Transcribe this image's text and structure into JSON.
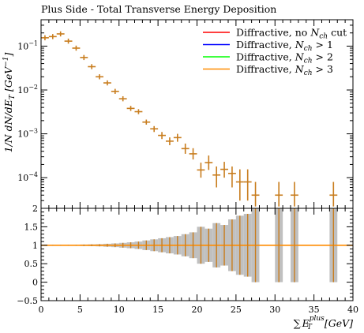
{
  "chart_data": {
    "type": "scatter",
    "title": "Plus Side - Total Transverse Energy Deposition",
    "xlabel": "∑ E_T^plus [GeV]",
    "xlabel_parts": {
      "sum": "∑",
      "e": "E",
      "sub": "T",
      "sup": "plus",
      "unit": "[GeV]"
    },
    "ylabel": "1/N dN/dE_T [GeV^-1]",
    "ylabel_parts": {
      "main": "1/N dN/dE",
      "sub": "T",
      "unit": "[GeV",
      "sup": "−1",
      "close": "]"
    },
    "ratio_ylabel": "",
    "xlim": [
      0,
      40
    ],
    "ylim": [
      2e-05,
      0.4
    ],
    "ylog": true,
    "ratio_ylim": [
      -0.5,
      2
    ],
    "x_ticks": [
      0,
      5,
      10,
      15,
      20,
      25,
      30,
      35,
      40
    ],
    "x_tick_labels": [
      "0",
      "5",
      "10",
      "15",
      "20",
      "25",
      "30",
      "35",
      "40"
    ],
    "y_ticks": [
      0.0001,
      0.001,
      0.01,
      0.1
    ],
    "y_tick_labels": [
      {
        "base": "10",
        "exp": "−4"
      },
      {
        "base": "10",
        "exp": "−3"
      },
      {
        "base": "10",
        "exp": "−2"
      },
      {
        "base": "10",
        "exp": "−1"
      }
    ],
    "ratio_ticks": [
      -0.5,
      0,
      0.5,
      1,
      1.5,
      2
    ],
    "ratio_tick_labels": [
      "−0.5",
      "0",
      "0.5",
      "1",
      "1.5",
      "2"
    ],
    "legend_position": "top-right",
    "legend": [
      {
        "pre": "Diffractive, no ",
        "sym": "N",
        "sub": "ch",
        "post": " cut",
        "color": "#ff0000"
      },
      {
        "pre": "Diffractive, ",
        "sym": "N",
        "sub": "ch",
        "post": " > 1",
        "color": "#0000ff"
      },
      {
        "pre": "Diffractive, ",
        "sym": "N",
        "sub": "ch",
        "post": " > 2",
        "color": "#00ff00"
      },
      {
        "pre": "Diffractive, ",
        "sym": "N",
        "sub": "ch",
        "post": " > 3",
        "color": "#ff8c00"
      }
    ],
    "point_color": "#c87d1e",
    "band_color": "#c0c0c0",
    "ratio_line_color": "#ff8c00",
    "points": [
      {
        "x": 0.5,
        "y": 0.155,
        "lo": 0.155,
        "hi": 0.155,
        "r": 0.005
      },
      {
        "x": 1.5,
        "y": 0.165,
        "lo": 0.165,
        "hi": 0.165,
        "r": 0.007
      },
      {
        "x": 2.5,
        "y": 0.19,
        "lo": 0.19,
        "hi": 0.19,
        "r": 0.006
      },
      {
        "x": 3.5,
        "y": 0.13,
        "lo": 0.13,
        "hi": 0.13,
        "r": 0.008
      },
      {
        "x": 4.5,
        "y": 0.09,
        "lo": 0.09,
        "hi": 0.09,
        "r": 0.01
      },
      {
        "x": 5.5,
        "y": 0.055,
        "lo": 0.055,
        "hi": 0.055,
        "r": 0.02
      },
      {
        "x": 6.5,
        "y": 0.034,
        "lo": 0.034,
        "hi": 0.034,
        "r": 0.025
      },
      {
        "x": 7.5,
        "y": 0.02,
        "lo": 0.02,
        "hi": 0.02,
        "r": 0.03
      },
      {
        "x": 8.5,
        "y": 0.0145,
        "lo": 0.0145,
        "hi": 0.0145,
        "r": 0.04
      },
      {
        "x": 9.5,
        "y": 0.0093,
        "lo": 0.0093,
        "hi": 0.0093,
        "r": 0.05
      },
      {
        "x": 10.5,
        "y": 0.0063,
        "lo": 0.0063,
        "hi": 0.0063,
        "r": 0.065
      },
      {
        "x": 11.5,
        "y": 0.0038,
        "lo": 0.0036,
        "hi": 0.004,
        "r": 0.08
      },
      {
        "x": 12.5,
        "y": 0.0032,
        "lo": 0.0029,
        "hi": 0.0035,
        "r": 0.1
      },
      {
        "x": 13.5,
        "y": 0.00185,
        "lo": 0.00165,
        "hi": 0.0021,
        "r": 0.13
      },
      {
        "x": 14.5,
        "y": 0.0013,
        "lo": 0.0011,
        "hi": 0.0015,
        "r": 0.16
      },
      {
        "x": 15.5,
        "y": 0.00092,
        "lo": 0.00076,
        "hi": 0.0011,
        "r": 0.19
      },
      {
        "x": 16.5,
        "y": 0.00068,
        "lo": 0.00055,
        "hi": 0.00083,
        "r": 0.22
      },
      {
        "x": 17.5,
        "y": 0.00082,
        "lo": 0.00066,
        "hi": 0.001,
        "r": 0.25
      },
      {
        "x": 18.5,
        "y": 0.00046,
        "lo": 0.00035,
        "hi": 0.0006,
        "r": 0.3
      },
      {
        "x": 19.5,
        "y": 0.00035,
        "lo": 0.00026,
        "hi": 0.00047,
        "r": 0.35
      },
      {
        "x": 20.5,
        "y": 0.00015,
        "lo": 0.0001,
        "hi": 0.00022,
        "r": 0.5
      },
      {
        "x": 21.5,
        "y": 0.00022,
        "lo": 0.00015,
        "hi": 0.00032,
        "r": 0.45
      },
      {
        "x": 22.5,
        "y": 0.000115,
        "lo": 6e-05,
        "hi": 0.00018,
        "r": 0.6
      },
      {
        "x": 23.5,
        "y": 0.000155,
        "lo": 0.0001,
        "hi": 0.00023,
        "r": 0.55
      },
      {
        "x": 24.5,
        "y": 0.000125,
        "lo": 6e-05,
        "hi": 0.00018,
        "r": 0.7
      },
      {
        "x": 25.5,
        "y": 8e-05,
        "lo": 3e-05,
        "hi": 0.000155,
        "r": 0.8
      },
      {
        "x": 26.5,
        "y": 8e-05,
        "lo": 3e-05,
        "hi": 0.000155,
        "r": 0.85
      },
      {
        "x": 27.5,
        "y": 4e-05,
        "lo": 2.2e-05,
        "hi": 8e-05,
        "r": 1.0
      },
      {
        "x": 30.5,
        "y": 4e-05,
        "lo": 2.2e-05,
        "hi": 8e-05,
        "r": 1.0
      },
      {
        "x": 32.5,
        "y": 4e-05,
        "lo": 2.2e-05,
        "hi": 8e-05,
        "r": 1.0
      },
      {
        "x": 37.5,
        "y": 4e-05,
        "lo": 2.2e-05,
        "hi": 8e-05,
        "r": 1.0
      }
    ]
  }
}
